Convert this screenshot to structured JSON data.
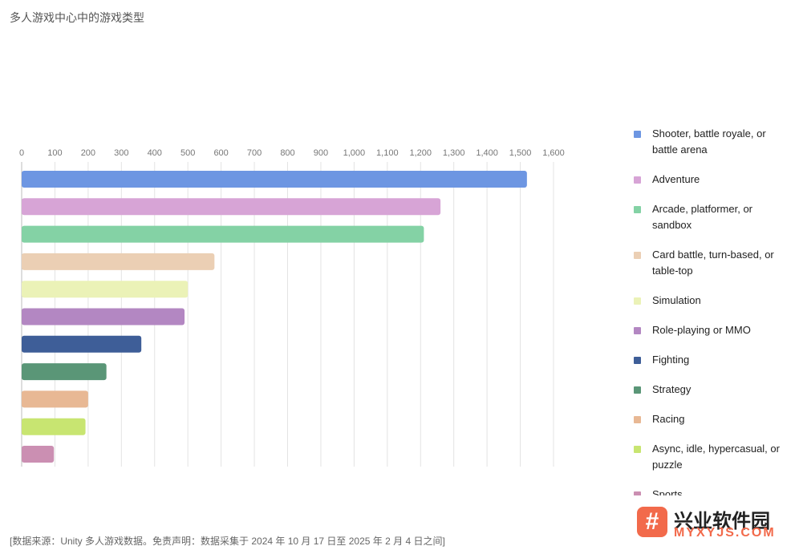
{
  "title": "多人游戏中心中的游戏类型",
  "footer": "[数据来源：Unity 多人游戏数据。免责声明：数据采集于 2024 年 10 月 17 日至 2025 年 2 月 4 日之间]",
  "watermark": {
    "glyph": "#",
    "name": "兴业软件园",
    "url": "MYXYJS.COM"
  },
  "chart_data": {
    "type": "bar",
    "orientation": "horizontal",
    "title": "多人游戏中心中的游戏类型",
    "xlim": [
      0,
      1600
    ],
    "ticks": [
      0,
      100,
      200,
      300,
      400,
      500,
      600,
      700,
      800,
      900,
      1000,
      1100,
      1200,
      1300,
      1400,
      1500,
      1600
    ],
    "tick_labels": [
      "0",
      "100",
      "200",
      "300",
      "400",
      "500",
      "600",
      "700",
      "800",
      "900",
      "1,000",
      "1,100",
      "1,200",
      "1,300",
      "1,400",
      "1,500",
      "1,600"
    ],
    "grid": true,
    "legend_position": "right",
    "categories": [
      "Shooter, battle royale, or battle arena",
      "Adventure",
      "Arcade, platformer, or sandbox",
      "Card battle, turn-based, or table-top",
      "Simulation",
      "Role-playing or MMO",
      "Fighting",
      "Strategy",
      "Racing",
      "Async, idle, hypercasual, or puzzle",
      "Sports"
    ],
    "values": [
      1520,
      1260,
      1210,
      580,
      500,
      490,
      360,
      255,
      200,
      192,
      97
    ],
    "colors": [
      "#6d96e2",
      "#d7a4d6",
      "#84d2a5",
      "#ebcfb4",
      "#ebf2b7",
      "#b387c2",
      "#3e5e98",
      "#5a9677",
      "#e8b894",
      "#c8e571",
      "#cb8fb2"
    ]
  }
}
